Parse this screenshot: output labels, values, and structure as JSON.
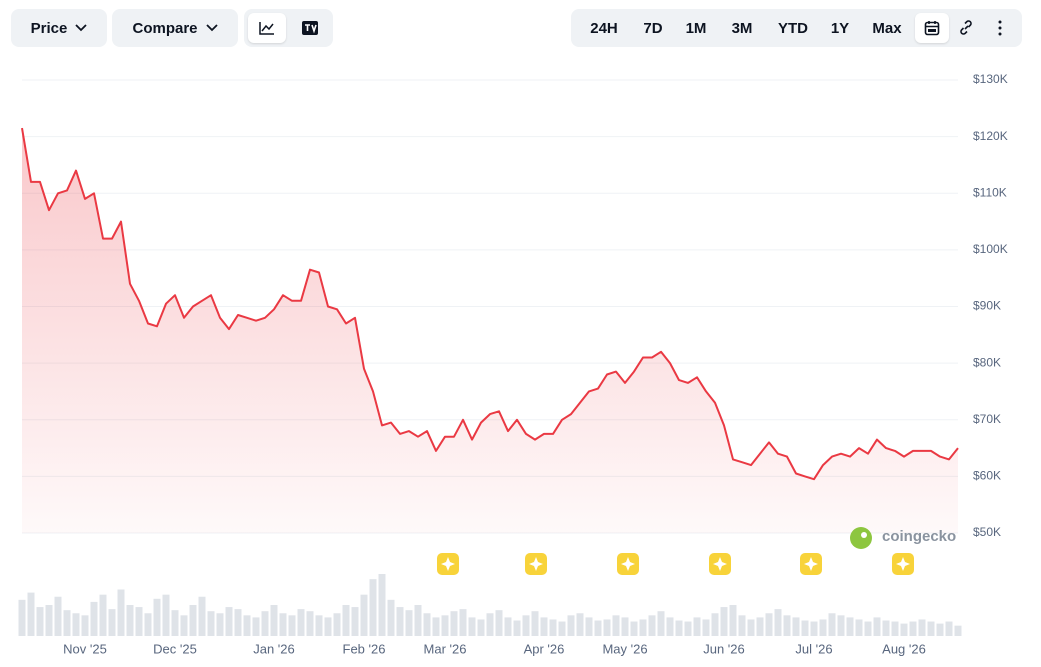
{
  "toolbar": {
    "left": [
      "Price",
      "Compare"
    ],
    "ranges": [
      "24H",
      "7D",
      "1M",
      "3M",
      "YTD",
      "1Y",
      "Max"
    ]
  },
  "watermark": "coingecko",
  "chart_data": {
    "type": "line",
    "color": "#ea3943",
    "categories": [
      null,
      null,
      null,
      null,
      null,
      null,
      null,
      "Nov '25",
      null,
      null,
      null,
      null,
      null,
      null,
      null,
      null,
      null,
      "Dec '25",
      null,
      null,
      null,
      null,
      null,
      null,
      null,
      null,
      null,
      null,
      "Jan '26",
      null,
      null,
      null,
      null,
      null,
      null,
      null,
      null,
      null,
      "Feb '26",
      null,
      null,
      null,
      null,
      null,
      null,
      null,
      null,
      "Mar '26",
      null,
      null,
      null,
      null,
      null,
      null,
      null,
      null,
      null,
      null,
      "Apr '26",
      null,
      null,
      null,
      null,
      null,
      null,
      null,
      null,
      "May '26",
      null,
      null,
      null,
      null,
      null,
      null,
      null,
      null,
      null,
      null,
      "Jun '26",
      null,
      null,
      null,
      null,
      null,
      null,
      null,
      null,
      null,
      "Jul '26",
      null,
      null,
      null,
      null,
      null,
      null,
      null,
      null,
      null,
      "Aug '26",
      null,
      null,
      null,
      null,
      null,
      null
    ],
    "values": [
      121500,
      112000,
      112000,
      107000,
      110000,
      110500,
      114000,
      109000,
      110000,
      102000,
      102000,
      105000,
      94000,
      91000,
      87000,
      86500,
      90500,
      92000,
      88000,
      90000,
      91000,
      92000,
      88000,
      86000,
      88500,
      88000,
      87500,
      88000,
      89500,
      92000,
      91000,
      91000,
      96500,
      96000,
      90000,
      89500,
      87000,
      88000,
      79000,
      75000,
      69000,
      69500,
      67500,
      68000,
      67000,
      68000,
      64500,
      67000,
      67000,
      70000,
      66500,
      69500,
      71000,
      71500,
      68000,
      70000,
      67500,
      66500,
      67500,
      67500,
      70000,
      71000,
      73000,
      75000,
      75500,
      78000,
      78500,
      76500,
      78500,
      81000,
      81000,
      82000,
      80000,
      77000,
      76500,
      77500,
      75000,
      73000,
      69000,
      63000,
      62500,
      62000,
      64000,
      66000,
      64000,
      63500,
      60500,
      60000,
      59500,
      62000,
      63500,
      64000,
      63500,
      65000,
      64000,
      66500,
      65000,
      64500,
      63500,
      64500,
      64500,
      64500,
      63500,
      63000,
      65000
    ],
    "ylim": [
      50000,
      130000
    ],
    "yticks": [
      {
        "value": 50000,
        "label": "$50K"
      },
      {
        "value": 60000,
        "label": "$60K"
      },
      {
        "value": 70000,
        "label": "$70K"
      },
      {
        "value": 80000,
        "label": "$80K"
      },
      {
        "value": 90000,
        "label": "$90K"
      },
      {
        "value": 100000,
        "label": "$100K"
      },
      {
        "value": 110000,
        "label": "$110K"
      },
      {
        "value": 120000,
        "label": "$120K"
      },
      {
        "value": 130000,
        "label": "$130K"
      }
    ],
    "grid": true,
    "volume": {
      "color": "#dfe3e8",
      "ylim": [
        0,
        60
      ],
      "values": [
        35,
        42,
        28,
        30,
        38,
        25,
        22,
        20,
        33,
        40,
        26,
        45,
        30,
        28,
        22,
        36,
        40,
        25,
        20,
        30,
        38,
        24,
        22,
        28,
        26,
        20,
        18,
        24,
        30,
        22,
        20,
        26,
        24,
        20,
        18,
        22,
        30,
        28,
        40,
        55,
        60,
        35,
        28,
        25,
        30,
        22,
        18,
        20,
        24,
        26,
        18,
        16,
        22,
        25,
        18,
        15,
        20,
        24,
        18,
        16,
        14,
        20,
        22,
        18,
        15,
        16,
        20,
        18,
        14,
        16,
        20,
        24,
        18,
        15,
        14,
        18,
        16,
        22,
        28,
        30,
        20,
        16,
        18,
        22,
        26,
        20,
        18,
        15,
        14,
        16,
        22,
        20,
        18,
        16,
        14,
        18,
        15,
        14,
        12,
        14,
        16,
        14,
        12,
        14,
        10
      ]
    }
  }
}
